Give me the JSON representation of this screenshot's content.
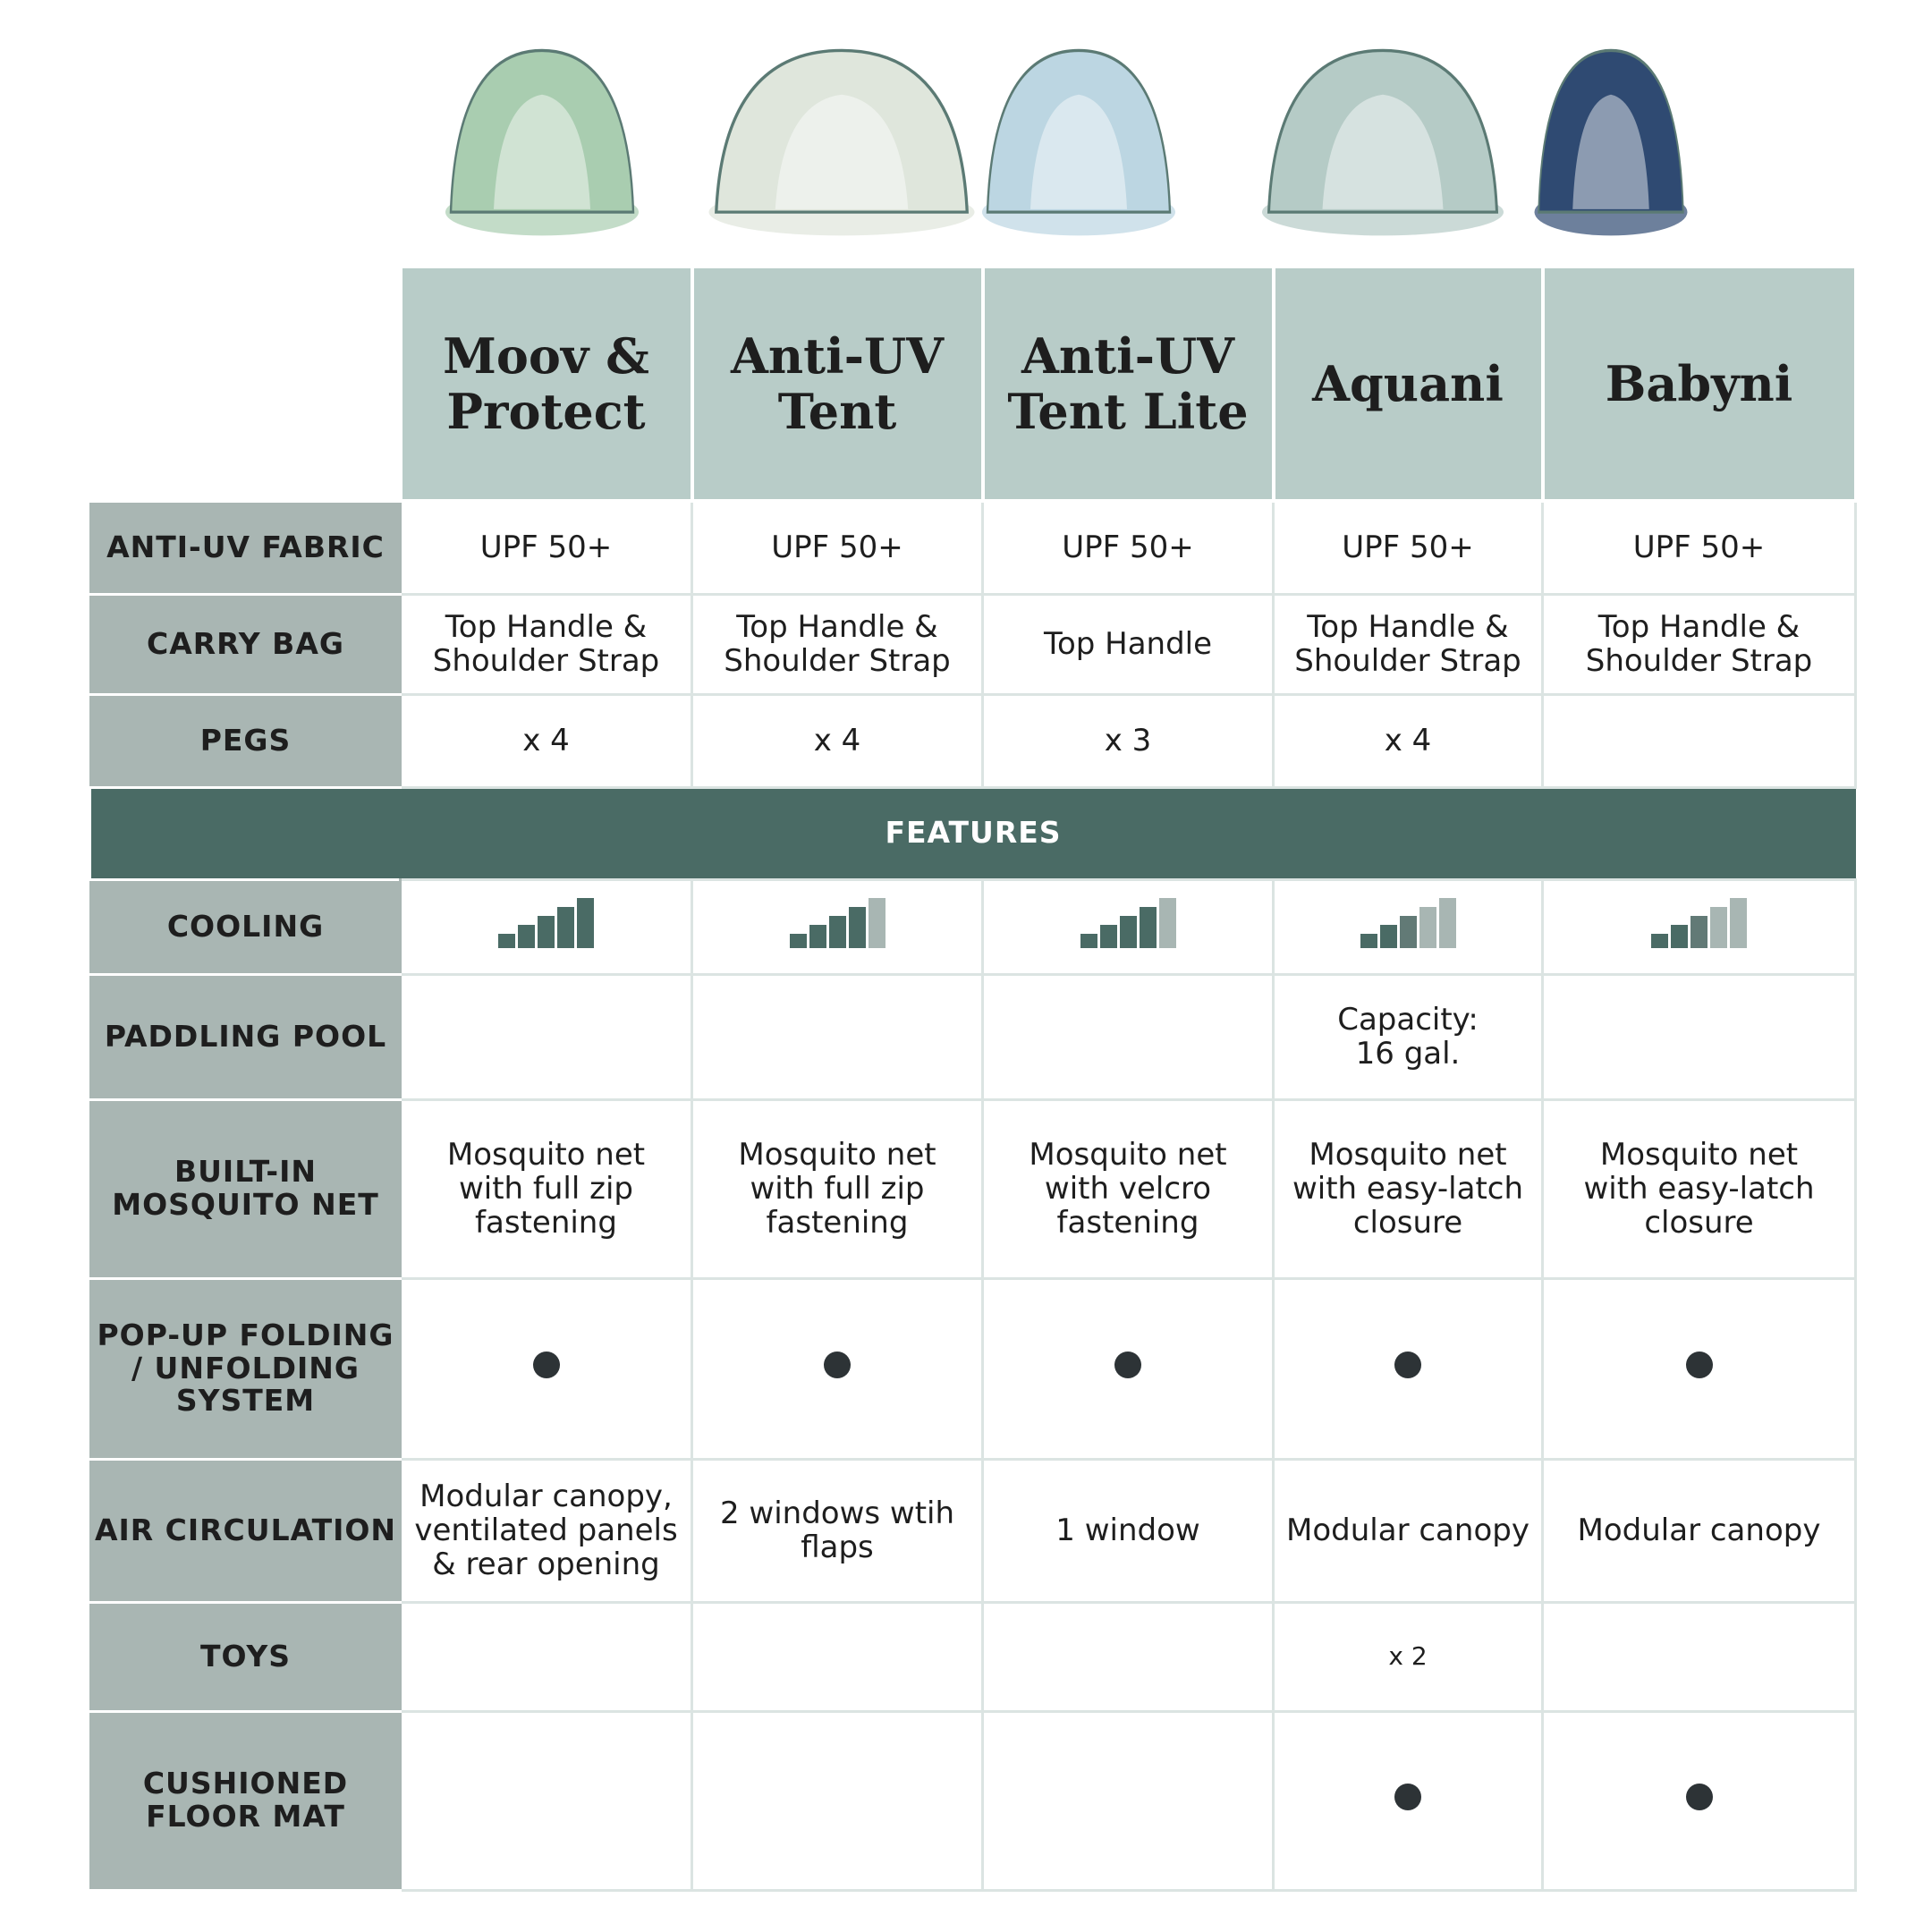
{
  "products": [
    {
      "name": "Moov & Protect",
      "uv": "UPF 50+",
      "bag": "Top Handle & Shoulder Strap",
      "pegs": "x 4",
      "cooling_bars": [
        "dark",
        "dark",
        "dark",
        "dark",
        "dark"
      ],
      "pool": "",
      "net": "Mosquito net with full zip fastening",
      "popup": true,
      "air": "Modular canopy, ventilated panels & rear opening",
      "toys": "",
      "mat": false,
      "tent_color": "#a9cdb0"
    },
    {
      "name": "Anti-UV Tent",
      "uv": "UPF 50+",
      "bag": "Top Handle & Shoulder Strap",
      "pegs": "x 4",
      "cooling_bars": [
        "dark",
        "dark",
        "dark",
        "dark",
        "light"
      ],
      "pool": "",
      "net": "Mosquito net with full zip fastening",
      "popup": true,
      "air": "2 windows wtih flaps",
      "toys": "",
      "mat": false,
      "tent_color": "#dfe6dc"
    },
    {
      "name": "Anti-UV Tent Lite",
      "uv": "UPF 50+",
      "bag": "Top Handle",
      "pegs": "x 3",
      "cooling_bars": [
        "dark",
        "dark",
        "dark",
        "dark",
        "light"
      ],
      "pool": "",
      "net": "Mosquito net with velcro fastening",
      "popup": true,
      "air": "1 window",
      "toys": "",
      "mat": false,
      "tent_color": "#bcd6e2"
    },
    {
      "name": "Aquani",
      "uv": "UPF 50+",
      "bag": "Top Handle & Shoulder Strap",
      "pegs": "x 4",
      "cooling_bars": [
        "dark",
        "dark",
        "mid",
        "light",
        "light"
      ],
      "pool": "Capacity: 16 gal.",
      "net": "Mosquito net with easy-latch closure",
      "popup": true,
      "air": "Modular canopy",
      "toys": "x 2",
      "mat": true,
      "tent_color": "#b5cbc6"
    },
    {
      "name": "Babyni",
      "uv": "UPF 50+",
      "bag": "Top Handle & Shoulder Strap",
      "pegs": "",
      "cooling_bars": [
        "dark",
        "dark",
        "mid",
        "light",
        "light"
      ],
      "pool": "",
      "net": "Mosquito net with easy-latch closure",
      "popup": true,
      "air": "Modular canopy",
      "toys": "",
      "mat": true,
      "tent_color": "#2f4a72"
    }
  ],
  "labels": {
    "uv": "ANTI-UV FABRIC",
    "bag": "CARRY BAG",
    "pegs": "PEGS",
    "features": "FEATURES",
    "cooling": "COOLING",
    "pool": "PADDLING POOL",
    "net": "BUILT-IN MOSQUITO NET",
    "popup": "POP-UP FOLDING / UNFOLDING SYSTEM",
    "air": "AIR CIRCULATION",
    "toys": "TOYS",
    "mat": "CUSHIONED FLOOR MAT"
  },
  "colors": {
    "dark": "#4a6b65",
    "mid": "#627a76",
    "light": "#a8b6b3",
    "bullet": "#2d3336"
  }
}
